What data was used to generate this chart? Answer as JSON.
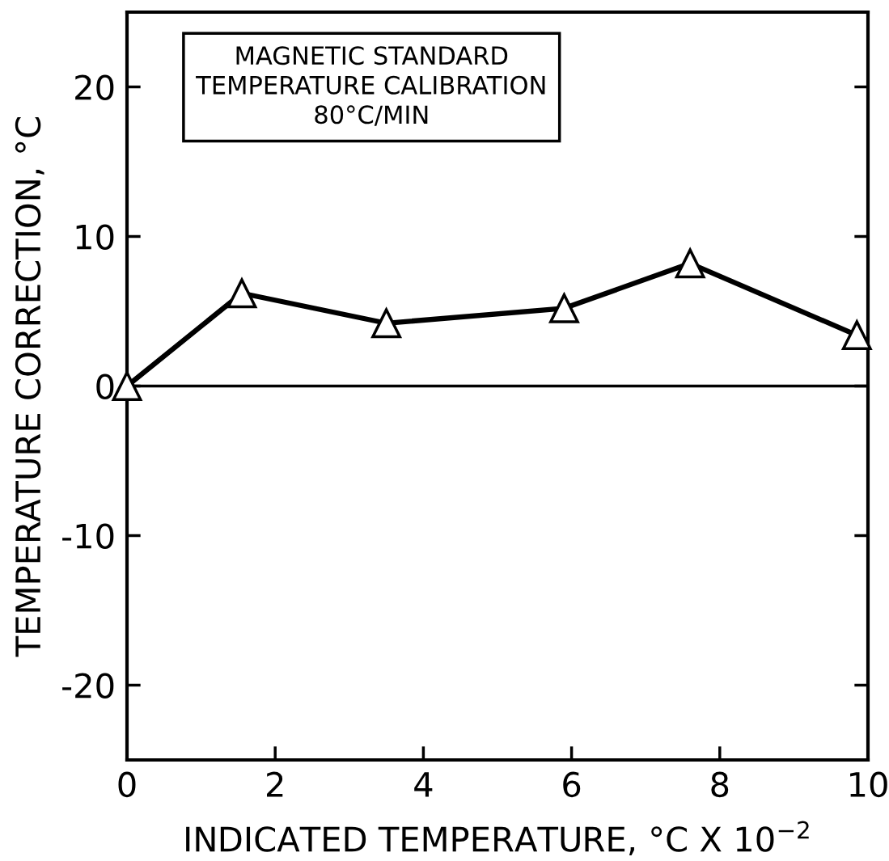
{
  "chart_data": {
    "type": "line",
    "xlabel": "INDICATED TEMPERATURE, °C X 10$^{−2}$",
    "ylabel": "TEMPERATURE CORRECTION, °C",
    "annotations": [
      "MAGNETIC STANDARD\nTEMPERATURE CALIBRATION\n80°C/MIN"
    ],
    "x": [
      0,
      1.55,
      3.5,
      5.9,
      7.6,
      9.85
    ],
    "series": [
      {
        "color": "#000000",
        "values": [
          0,
          6.2,
          4.2,
          5.2,
          8.2,
          3.4
        ]
      }
    ],
    "marker": "triangle",
    "line_style": "solid",
    "grid": false,
    "xlim": [
      0,
      10
    ],
    "xticks": [
      0,
      2,
      4,
      6,
      8,
      10
    ],
    "ylim": [
      -25,
      25
    ],
    "yticks": [
      {
        "value": -20,
        "label": "-20"
      },
      {
        "value": -10,
        "label": "-10"
      },
      0,
      10,
      20
    ],
    "ref_lines": [
      {
        "axis": "y",
        "value": 0,
        "color": "#000000",
        "line_style": "solid"
      }
    ]
  }
}
